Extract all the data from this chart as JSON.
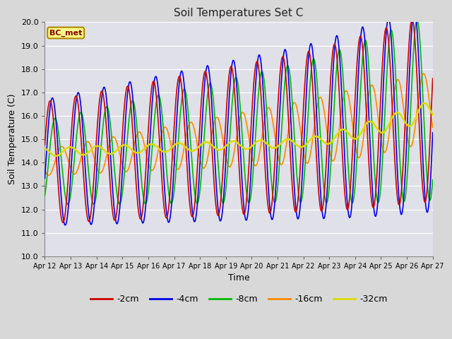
{
  "title": "Soil Temperatures Set C",
  "xlabel": "Time",
  "ylabel": "Soil Temperature (C)",
  "ylim": [
    10.0,
    20.0
  ],
  "yticks": [
    10.0,
    11.0,
    12.0,
    13.0,
    14.0,
    15.0,
    16.0,
    17.0,
    18.0,
    19.0,
    20.0
  ],
  "annotation": "BC_met",
  "fig_bg_color": "#d8d8d8",
  "plot_bg_color": "#e0e0e8",
  "series": {
    "-2cm": {
      "color": "#cc0000",
      "linewidth": 1.2
    },
    "-4cm": {
      "color": "#0000ee",
      "linewidth": 1.2
    },
    "-8cm": {
      "color": "#00bb00",
      "linewidth": 1.2
    },
    "-16cm": {
      "color": "#ff8800",
      "linewidth": 1.2
    },
    "-32cm": {
      "color": "#dddd00",
      "linewidth": 1.8
    }
  },
  "xtick_labels": [
    "Apr 12",
    "Apr 13",
    "Apr 14",
    "Apr 15",
    "Apr 16",
    "Apr 17",
    "Apr 18",
    "Apr 19",
    "Apr 20",
    "Apr 21",
    "Apr 22",
    "Apr 23",
    "Apr 24",
    "Apr 25",
    "Apr 26",
    "Apr 27"
  ],
  "n_points": 720
}
